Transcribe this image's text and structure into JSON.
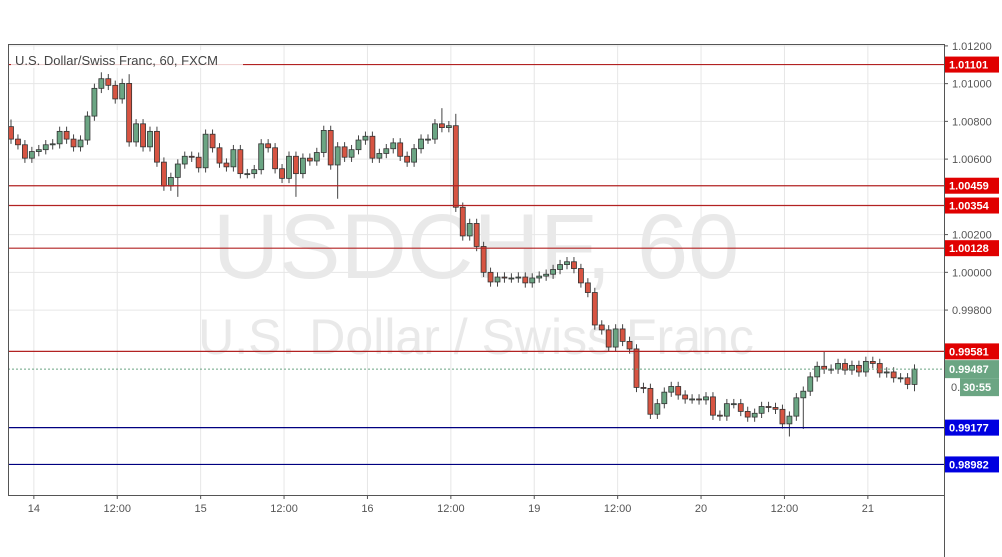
{
  "chart_data": {
    "type": "candlestick",
    "title": "U.S. Dollar/Swiss Franc, 60, FXCM",
    "watermark_symbol": "USDCHF, 60",
    "watermark_name": "U.S. Dollar / Swiss Franc",
    "ylim": [
      0.9882,
      1.0121
    ],
    "y_ticks": [
      "1.01200",
      "1.01000",
      "1.00800",
      "1.00600",
      "1.00200",
      "1.00000",
      "0.99800"
    ],
    "y_tick_values": [
      1.012,
      1.01,
      1.008,
      1.006,
      1.002,
      1.0,
      0.998
    ],
    "x_ticks": [
      "14",
      "12:00",
      "15",
      "12:00",
      "16",
      "12:00",
      "19",
      "12:00",
      "20",
      "12:00",
      "21"
    ],
    "x_tick_candle_index": [
      3,
      15,
      27,
      39,
      51,
      63,
      75,
      87,
      99,
      111,
      123
    ],
    "grid": true,
    "first_open": 1.00772,
    "close": [
      1.00706,
      1.00676,
      1.00605,
      1.0064,
      1.0065,
      1.00676,
      1.00681,
      1.00747,
      1.00706,
      1.00665,
      1.00701,
      1.00828,
      1.00975,
      1.01026,
      1.00991,
      1.00919,
      1.01001,
      1.00691,
      1.00787,
      1.00665,
      1.00747,
      1.00584,
      1.00457,
      1.00503,
      1.00574,
      1.00615,
      1.0061,
      1.00554,
      1.00732,
      1.0066,
      1.00579,
      1.00559,
      1.0065,
      1.00523,
      1.00523,
      1.00544,
      1.00681,
      1.0066,
      1.00549,
      1.00498,
      1.00615,
      1.00523,
      1.00605,
      1.0059,
      1.00635,
      1.00752,
      1.00569,
      1.00665,
      1.0061,
      1.0065,
      1.00701,
      1.00721,
      1.00605,
      1.0063,
      1.00655,
      1.00686,
      1.00615,
      1.00584,
      1.00655,
      1.00706,
      1.00706,
      1.00787,
      1.00767,
      1.00777,
      1.00345,
      1.00193,
      1.00259,
      1.00137,
      1.0,
      0.99949,
      0.99975,
      0.9997,
      0.9997,
      0.99975,
      0.99944,
      0.9997,
      0.9998,
      0.9999,
      1.00015,
      1.00041,
      1.00056,
      1.0002,
      0.99944,
      0.99893,
      0.99721,
      0.99695,
      0.99604,
      0.997,
      0.99634,
      0.99594,
      0.9939,
      0.99385,
      0.99248,
      0.99304,
      0.99365,
      0.99395,
      0.9935,
      0.99329,
      0.99329,
      0.99324,
      0.9934,
      0.99243,
      0.99238,
      0.99304,
      0.99304,
      0.99263,
      0.99233,
      0.99253,
      0.99289,
      0.99284,
      0.99274,
      0.99197,
      0.99238,
      0.99335,
      0.9937,
      0.99446,
      0.99502,
      0.99487,
      0.99487,
      0.99517,
      0.99482,
      0.99507,
      0.99472,
      0.99528,
      0.99517,
      0.99467,
      0.99472,
      0.99441,
      0.99441,
      0.99406,
      0.99487
    ],
    "high_overrides": {
      "0": 1.0081,
      "13": 1.0106,
      "17": 1.0105,
      "62": 1.0087,
      "64": 1.0084,
      "117": 0.9958,
      "131": 0.9954
    },
    "low_overrides": {
      "24": 1.004,
      "41": 1.004,
      "47": 1.0039,
      "112": 0.9913,
      "114": 0.9917,
      "130": 0.9937
    },
    "up_color": "#6ba583",
    "down_color": "#d75442",
    "levels": [
      {
        "price": 1.01101,
        "label": "1.01101",
        "color": "#e00000"
      },
      {
        "price": 1.00459,
        "label": "1.00459",
        "color": "#e00000"
      },
      {
        "price": 1.00354,
        "label": "1.00354",
        "color": "#e00000"
      },
      {
        "price": 1.00128,
        "label": "1.00128",
        "color": "#e00000"
      },
      {
        "price": 0.99581,
        "label": "0.99581",
        "color": "#e00000"
      },
      {
        "price": 0.99177,
        "label": "0.99177",
        "color": "#0000e0"
      },
      {
        "price": 0.98982,
        "label": "0.98982",
        "color": "#0000e0"
      }
    ],
    "current_price": {
      "price": 0.99487,
      "label": "0.99487",
      "color": "#6ba583"
    },
    "countdown": {
      "prefix": "0.",
      "label": "30:55"
    }
  }
}
